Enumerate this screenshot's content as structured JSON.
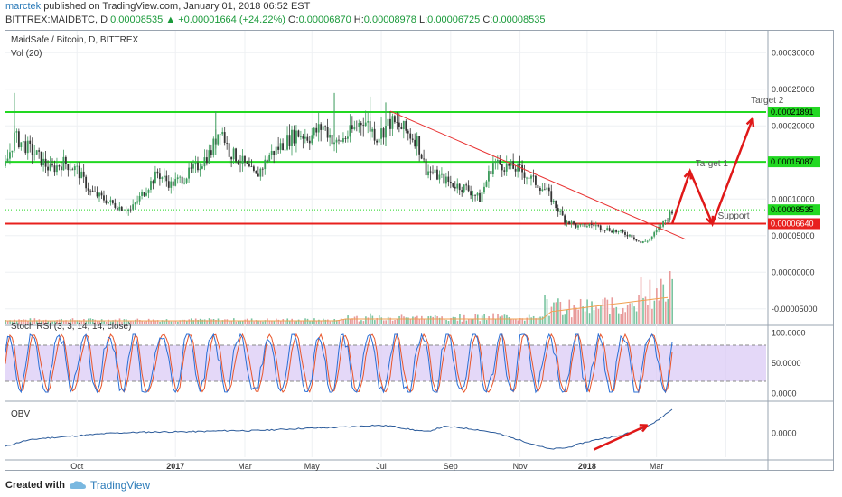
{
  "header": {
    "user": "marctek",
    "published": "published on TradingView.com, January 01, 2018 06:52 EST",
    "symbol": "BITTREX:MAIDBTC, D",
    "price": "0.00008535",
    "change": "▲ +0.00001664 (+24.22%)",
    "o_label": "O:",
    "o": "0.00006870",
    "h_label": "H:",
    "h": "0.00008978",
    "l_label": "L:",
    "l": "0.00006725",
    "c_label": "C:",
    "c": "0.00008535"
  },
  "footer": {
    "created": "Created with",
    "brand": "TradingView"
  },
  "colors": {
    "up": "#3a9a5a",
    "down": "#333333",
    "green_line": "#22d822",
    "red_line": "#e8201e",
    "trend": "#e83030",
    "rsi_k": "#2a6fd6",
    "rsi_d": "#e8552a",
    "rsi_band": "#d9c7f5",
    "obv": "#2a5a9a",
    "vol_up": "#7ac4a0",
    "vol_down": "#e89a9a",
    "vol_ma": "#f0a050"
  },
  "chart_data": [
    {
      "type": "candlestick",
      "title": "MaidSafe / Bitcoin, D, BITTREX",
      "subtitle": "Vol (20)",
      "y_ticks": [
        "0.00030000",
        "0.00025000",
        "0.00020000",
        "0.00010000",
        "0.00005000",
        "0.00000000",
        "-0.00005000"
      ],
      "ylim": [
        -7e-05,
        0.00033
      ],
      "x_ticks": [
        "Oct",
        "2017",
        "Mar",
        "May",
        "Jul",
        "Sep",
        "Nov",
        "2018",
        "Mar"
      ],
      "horizontal_levels": [
        {
          "value": 0.00021891,
          "label": "0.00021891",
          "color": "green"
        },
        {
          "value": 0.00015087,
          "label": "0.00015087",
          "color": "green"
        },
        {
          "value": 8.535e-05,
          "label": "0.00008535",
          "color": "green",
          "style": "dotted"
        },
        {
          "value": 6.64e-05,
          "label": "0.00006640",
          "color": "red"
        }
      ],
      "annotations": [
        "Target 2",
        "Target 1",
        "Support"
      ],
      "price_path": [
        {
          "t": 0,
          "v": 0.000145
        },
        {
          "t": 4,
          "v": 0.000185
        },
        {
          "t": 8,
          "v": 0.000175
        },
        {
          "t": 14,
          "v": 0.00016
        },
        {
          "t": 20,
          "v": 0.00014
        },
        {
          "t": 26,
          "v": 0.00015
        },
        {
          "t": 32,
          "v": 0.00014
        },
        {
          "t": 38,
          "v": 0.00011
        },
        {
          "t": 44,
          "v": 0.0001
        },
        {
          "t": 50,
          "v": 9e-05
        },
        {
          "t": 56,
          "v": 8.5e-05
        },
        {
          "t": 62,
          "v": 0.00011
        },
        {
          "t": 68,
          "v": 0.000135
        },
        {
          "t": 74,
          "v": 0.00012
        },
        {
          "t": 80,
          "v": 0.00013
        },
        {
          "t": 86,
          "v": 0.000145
        },
        {
          "t": 92,
          "v": 0.000165
        },
        {
          "t": 96,
          "v": 0.0002
        },
        {
          "t": 100,
          "v": 0.000165
        },
        {
          "t": 106,
          "v": 0.00015
        },
        {
          "t": 112,
          "v": 0.00013
        },
        {
          "t": 118,
          "v": 0.00016
        },
        {
          "t": 124,
          "v": 0.000175
        },
        {
          "t": 130,
          "v": 0.00019
        },
        {
          "t": 136,
          "v": 0.000185
        },
        {
          "t": 142,
          "v": 0.0002
        },
        {
          "t": 148,
          "v": 0.000175
        },
        {
          "t": 154,
          "v": 0.00019
        },
        {
          "t": 160,
          "v": 0.00021
        },
        {
          "t": 166,
          "v": 0.000185
        },
        {
          "t": 172,
          "v": 0.000205
        },
        {
          "t": 178,
          "v": 0.000195
        },
        {
          "t": 184,
          "v": 0.00018
        },
        {
          "t": 188,
          "v": 0.00014
        },
        {
          "t": 194,
          "v": 0.00013
        },
        {
          "t": 200,
          "v": 0.00012
        },
        {
          "t": 206,
          "v": 0.000115
        },
        {
          "t": 212,
          "v": 0.0001
        },
        {
          "t": 218,
          "v": 0.00015
        },
        {
          "t": 224,
          "v": 0.000145
        },
        {
          "t": 230,
          "v": 0.00014
        },
        {
          "t": 236,
          "v": 0.000125
        },
        {
          "t": 242,
          "v": 0.00011
        },
        {
          "t": 246,
          "v": 9e-05
        },
        {
          "t": 250,
          "v": 7.2e-05
        },
        {
          "t": 256,
          "v": 6.2e-05
        },
        {
          "t": 262,
          "v": 6.5e-05
        },
        {
          "t": 268,
          "v": 6e-05
        },
        {
          "t": 274,
          "v": 5.5e-05
        },
        {
          "t": 280,
          "v": 5e-05
        },
        {
          "t": 284,
          "v": 4e-05
        },
        {
          "t": 288,
          "v": 4.5e-05
        },
        {
          "t": 292,
          "v": 6e-05
        },
        {
          "t": 296,
          "v": 7.5e-05
        },
        {
          "t": 298,
          "v": 8.53e-05
        }
      ],
      "trendline": [
        {
          "t": 172,
          "v": 0.00022
        },
        {
          "t": 304,
          "v": 4.5e-05
        }
      ],
      "projection": [
        {
          "t": 298,
          "v": 6.6e-05
        },
        {
          "t": 306,
          "v": 0.000138
        },
        {
          "t": 316,
          "v": 6.6e-05
        },
        {
          "t": 334,
          "v": 0.00021
        }
      ]
    },
    {
      "type": "line",
      "title": "Stoch RSI (3, 3, 14, 14, close)",
      "y_ticks": [
        "100.0000",
        "50.0000",
        "0.0000"
      ],
      "ylim": [
        -10,
        110
      ],
      "band": [
        20,
        80
      ]
    },
    {
      "type": "line",
      "title": "OBV",
      "y_ticks": [
        "0.0000"
      ],
      "series": [
        {
          "values": [
            -0.5,
            -0.3,
            -0.2,
            -0.15,
            -0.1,
            -0.05,
            0,
            0.02,
            0.04,
            0.05,
            0.05,
            0.06,
            0.08,
            0.1,
            0.09,
            0.12,
            0.15,
            0.18,
            0.2,
            0.22,
            0.25,
            0.3,
            0.27,
            0.15,
            0.05,
            0.25,
            0.2,
            0.12,
            0.0,
            -0.2,
            -0.4,
            -0.6,
            -0.55,
            -0.35,
            -0.2,
            -0.1,
            0.1,
            0.4,
            0.9
          ]
        }
      ]
    }
  ]
}
